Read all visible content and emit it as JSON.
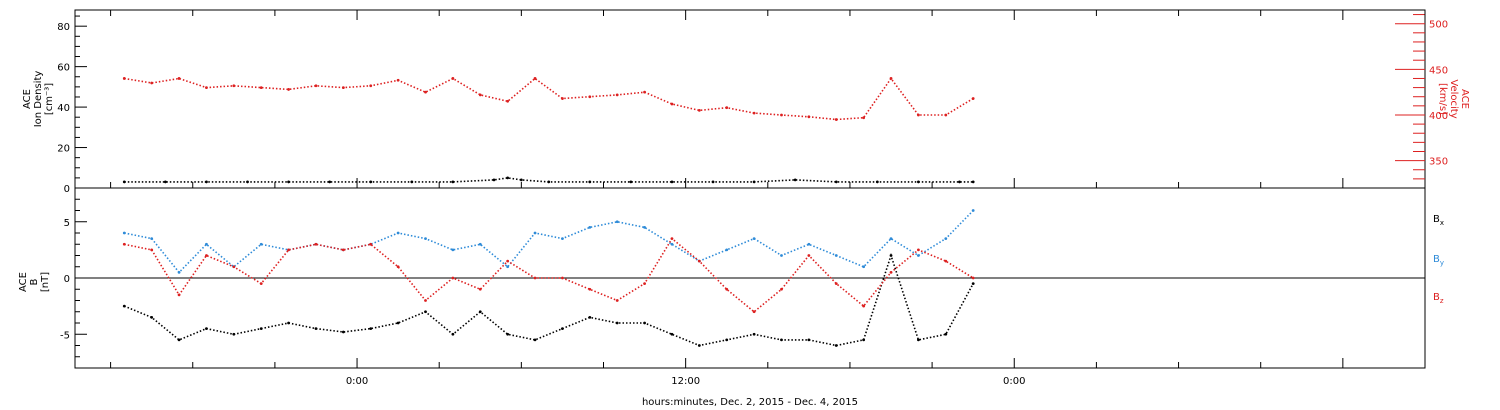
{
  "chart_data": [
    {
      "type": "scatter",
      "panel": "top",
      "ylabel_left": [
        "ACE",
        "Ion Density",
        "[cm⁻³]"
      ],
      "ylabel_right": [
        "ACE",
        "Velocity",
        "[km/s]"
      ],
      "ylim_left": [
        0,
        88
      ],
      "ylim_right": [
        320,
        515
      ],
      "left_ticks": [
        0,
        20,
        40,
        60,
        80
      ],
      "right_ticks": [
        350,
        400,
        450,
        500
      ],
      "series": [
        {
          "key": "density",
          "axis": "left",
          "color": "#000000",
          "x": [
            -8.5,
            -7,
            -5.5,
            -4,
            -2.5,
            -1,
            0.5,
            2,
            3.5,
            5,
            5.5,
            6,
            7,
            8.5,
            10,
            11.5,
            13,
            14.5,
            16,
            17.5,
            19,
            20.5,
            22,
            22.5
          ],
          "y": [
            3,
            3,
            3,
            3,
            3,
            3,
            3,
            3,
            3,
            4,
            5,
            4,
            3,
            3,
            3,
            3,
            3,
            3,
            4,
            3,
            3,
            3,
            3,
            3
          ]
        },
        {
          "key": "velocity",
          "axis": "right",
          "color": "#dd2020",
          "x": [
            -8.5,
            -7.5,
            -6.5,
            -5.5,
            -4.5,
            -3.5,
            -2.5,
            -1.5,
            -0.5,
            0.5,
            1.5,
            2.5,
            3.5,
            4.5,
            5.5,
            6.5,
            7.5,
            8.5,
            9.5,
            10.5,
            11.5,
            12.5,
            13.5,
            14.5,
            15.5,
            16.5,
            17.5,
            18.5,
            19.5,
            20.5,
            21.5,
            22.5
          ],
          "y": [
            440,
            435,
            440,
            430,
            432,
            430,
            428,
            432,
            430,
            432,
            438,
            425,
            440,
            422,
            415,
            440,
            418,
            420,
            422,
            425,
            412,
            405,
            408,
            402,
            400,
            398,
            395,
            397,
            440,
            400,
            400,
            418
          ]
        }
      ]
    },
    {
      "type": "scatter",
      "panel": "bottom",
      "ylabel": [
        "ACE",
        "B",
        "[nT]"
      ],
      "ylim": [
        -8,
        8
      ],
      "yticks": [
        -5,
        0,
        5
      ],
      "zero_line": true,
      "legend": [
        "Bx",
        "By",
        "Bz"
      ],
      "series": [
        {
          "key": "bx",
          "name": "Bx",
          "color": "#000000",
          "x": [
            -8.5,
            -7.5,
            -6.5,
            -5.5,
            -4.5,
            -3.5,
            -2.5,
            -1.5,
            -0.5,
            0.5,
            1.5,
            2.5,
            3.5,
            4.5,
            5.5,
            6.5,
            7.5,
            8.5,
            9.5,
            10.5,
            11.5,
            12.5,
            13.5,
            14.5,
            15.5,
            16.5,
            17.5,
            18.5,
            19.5,
            20.5,
            21.5,
            22.5
          ],
          "y": [
            -2.5,
            -3.5,
            -5.5,
            -4.5,
            -5,
            -4.5,
            -4,
            -4.5,
            -4.8,
            -4.5,
            -4,
            -3,
            -5,
            -3,
            -5,
            -5.5,
            -4.5,
            -3.5,
            -4,
            -4,
            -5,
            -6,
            -5.5,
            -5,
            -5.5,
            -5.5,
            -6,
            -5.5,
            2,
            -5.5,
            -5,
            -0.5
          ]
        },
        {
          "key": "by",
          "name": "By",
          "color": "#2e8bd8",
          "x": [
            -8.5,
            -7.5,
            -6.5,
            -5.5,
            -4.5,
            -3.5,
            -2.5,
            -1.5,
            -0.5,
            0.5,
            1.5,
            2.5,
            3.5,
            4.5,
            5.5,
            6.5,
            7.5,
            8.5,
            9.5,
            10.5,
            11.5,
            12.5,
            13.5,
            14.5,
            15.5,
            16.5,
            17.5,
            18.5,
            19.5,
            20.5,
            21.5,
            22.5
          ],
          "y": [
            4,
            3.5,
            0.5,
            3,
            1,
            3,
            2.5,
            3,
            2.5,
            3,
            4,
            3.5,
            2.5,
            3,
            1,
            4,
            3.5,
            4.5,
            5,
            4.5,
            3,
            1.5,
            2.5,
            3.5,
            2,
            3,
            2,
            1,
            3.5,
            2,
            3.5,
            6
          ]
        },
        {
          "key": "bz",
          "name": "Bz",
          "color": "#dd2020",
          "x": [
            -8.5,
            -7.5,
            -6.5,
            -5.5,
            -4.5,
            -3.5,
            -2.5,
            -1.5,
            -0.5,
            0.5,
            1.5,
            2.5,
            3.5,
            4.5,
            5.5,
            6.5,
            7.5,
            8.5,
            9.5,
            10.5,
            11.5,
            12.5,
            13.5,
            14.5,
            15.5,
            16.5,
            17.5,
            18.5,
            19.5,
            20.5,
            21.5,
            22.5
          ],
          "y": [
            3,
            2.5,
            -1.5,
            2,
            1,
            -0.5,
            2.5,
            3,
            2.5,
            3,
            1,
            -2,
            0,
            -1,
            1.5,
            0,
            0,
            -1,
            -2,
            -0.5,
            3.5,
            1.5,
            -1,
            -3,
            -1,
            2,
            -0.5,
            -2.5,
            0.5,
            2.5,
            1.5,
            0
          ]
        }
      ]
    }
  ],
  "x_axis": {
    "xlim": [
      -10.3,
      39
    ],
    "ticks": [
      0,
      12,
      24
    ],
    "tick_labels": [
      "0:00",
      "12:00",
      "0:00"
    ],
    "title": "hours:minutes, Dec. 2, 2015 - Dec. 4, 2015"
  },
  "colors": {
    "black": "#000000",
    "red": "#dd2020",
    "blue": "#2e8bd8"
  }
}
